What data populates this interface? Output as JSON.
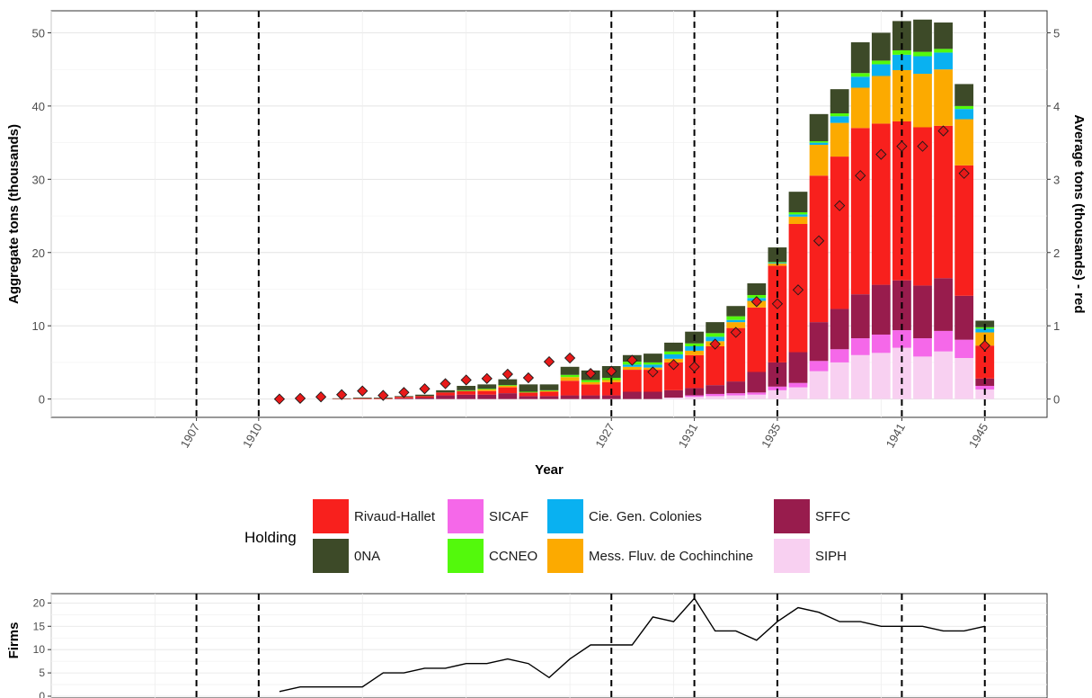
{
  "chart_data": [
    {
      "type": "bar",
      "stacked": true,
      "xlabel": "Year",
      "ylabel": "Aggregate tons (thousands)",
      "ylabel_right": "Average tons (thousands) - red",
      "xlim": [
        1900,
        1948
      ],
      "ylim": [
        -2.5,
        53
      ],
      "ylim_right": [
        -0.25,
        5.3
      ],
      "yticks": [
        "0",
        "10",
        "20",
        "30",
        "40",
        "50"
      ],
      "yticks_right": [
        "0",
        "1",
        "2",
        "3",
        "4",
        "5"
      ],
      "vlines": [
        1907,
        1910,
        1927,
        1931,
        1935,
        1941,
        1945
      ],
      "xtick_labels": [
        "1907",
        "1910",
        "1927",
        "1931",
        "1935",
        "1941",
        "1945"
      ],
      "grid": true,
      "legend": {
        "title": "Holding",
        "placement": "bottom",
        "entries": [
          {
            "label": "Rivaud-Hallet",
            "color": "#f8201d"
          },
          {
            "label": "SICAF",
            "color": "#f568e9"
          },
          {
            "label": "Cie. Gen. Colonies",
            "color": "#09b1f1"
          },
          {
            "label": "SFFC",
            "color": "#981c4d"
          },
          {
            "label": "0NA",
            "color": "#3d4a28"
          },
          {
            "label": "CCNEO",
            "color": "#53f90c"
          },
          {
            "label": "Mess. Fluv. de Cochinchine",
            "color": "#fcaa00"
          },
          {
            "label": "SIPH",
            "color": "#f8d0f1"
          }
        ]
      },
      "stack_order": [
        "SIPH",
        "SICAF",
        "SFFC",
        "Rivaud-Hallet",
        "Mess. Fluv. de Cochinchine",
        "Cie. Gen. Colonies",
        "CCNEO",
        "0NA"
      ],
      "bars": [
        {
          "year": 1911,
          "values": {
            "SIPH": 0,
            "SICAF": 0,
            "SFFC": 0,
            "Rivaud-Hallet": 0,
            "Mess. Fluv. de Cochinchine": 0,
            "Cie. Gen. Colonies": 0,
            "CCNEO": 0,
            "0NA": 0
          }
        },
        {
          "year": 1912,
          "values": {
            "SIPH": 0,
            "SICAF": 0,
            "SFFC": 0,
            "Rivaud-Hallet": 0,
            "Mess. Fluv. de Cochinchine": 0,
            "Cie. Gen. Colonies": 0,
            "CCNEO": 0,
            "0NA": 0
          }
        },
        {
          "year": 1913,
          "values": {
            "SIPH": 0,
            "SICAF": 0,
            "SFFC": 0,
            "Rivaud-Hallet": 0,
            "Mess. Fluv. de Cochinchine": 0,
            "Cie. Gen. Colonies": 0,
            "CCNEO": 0,
            "0NA": 0
          }
        },
        {
          "year": 1914,
          "values": {
            "SIPH": 0,
            "SICAF": 0,
            "SFFC": 0,
            "Rivaud-Hallet": 0.05,
            "Mess. Fluv. de Cochinchine": 0,
            "Cie. Gen. Colonies": 0,
            "CCNEO": 0,
            "0NA": 0.05
          }
        },
        {
          "year": 1915,
          "values": {
            "SIPH": 0,
            "SICAF": 0,
            "SFFC": 0,
            "Rivaud-Hallet": 0.1,
            "Mess. Fluv. de Cochinchine": 0,
            "Cie. Gen. Colonies": 0,
            "CCNEO": 0,
            "0NA": 0.1
          }
        },
        {
          "year": 1916,
          "values": {
            "SIPH": 0,
            "SICAF": 0,
            "SFFC": 0,
            "Rivaud-Hallet": 0.1,
            "Mess. Fluv. de Cochinchine": 0,
            "Cie. Gen. Colonies": 0,
            "CCNEO": 0,
            "0NA": 0.1
          }
        },
        {
          "year": 1917,
          "values": {
            "SIPH": 0,
            "SICAF": 0,
            "SFFC": 0.1,
            "Rivaud-Hallet": 0.2,
            "Mess. Fluv. de Cochinchine": 0,
            "Cie. Gen. Colonies": 0,
            "CCNEO": 0,
            "0NA": 0.1
          }
        },
        {
          "year": 1918,
          "values": {
            "SIPH": 0,
            "SICAF": 0,
            "SFFC": 0.2,
            "Rivaud-Hallet": 0.2,
            "Mess. Fluv. de Cochinchine": 0,
            "Cie. Gen. Colonies": 0,
            "CCNEO": 0,
            "0NA": 0.2
          }
        },
        {
          "year": 1919,
          "values": {
            "SIPH": 0,
            "SICAF": 0,
            "SFFC": 0.5,
            "Rivaud-Hallet": 0.4,
            "Mess. Fluv. de Cochinchine": 0,
            "Cie. Gen. Colonies": 0,
            "CCNEO": 0,
            "0NA": 0.3
          }
        },
        {
          "year": 1920,
          "values": {
            "SIPH": 0,
            "SICAF": 0,
            "SFFC": 0.6,
            "Rivaud-Hallet": 0.5,
            "Mess. Fluv. de Cochinchine": 0,
            "Cie. Gen. Colonies": 0,
            "CCNEO": 0.1,
            "0NA": 0.6
          }
        },
        {
          "year": 1921,
          "values": {
            "SIPH": 0,
            "SICAF": 0,
            "SFFC": 0.6,
            "Rivaud-Hallet": 0.5,
            "Mess. Fluv. de Cochinchine": 0.2,
            "Cie. Gen. Colonies": 0,
            "CCNEO": 0.1,
            "0NA": 0.6
          }
        },
        {
          "year": 1922,
          "values": {
            "SIPH": 0,
            "SICAF": 0,
            "SFFC": 0.8,
            "Rivaud-Hallet": 0.8,
            "Mess. Fluv. de Cochinchine": 0.2,
            "Cie. Gen. Colonies": 0,
            "CCNEO": 0.1,
            "0NA": 0.8
          }
        },
        {
          "year": 1923,
          "values": {
            "SIPH": 0,
            "SICAF": 0,
            "SFFC": 0.4,
            "Rivaud-Hallet": 0.5,
            "Mess. Fluv. de Cochinchine": 0,
            "Cie. Gen. Colonies": 0,
            "CCNEO": 0.1,
            "0NA": 1.0
          }
        },
        {
          "year": 1924,
          "values": {
            "SIPH": 0,
            "SICAF": 0,
            "SFFC": 0.4,
            "Rivaud-Hallet": 0.6,
            "Mess. Fluv. de Cochinchine": 0.1,
            "Cie. Gen. Colonies": 0,
            "CCNEO": 0.1,
            "0NA": 0.8
          }
        },
        {
          "year": 1925,
          "values": {
            "SIPH": 0,
            "SICAF": 0,
            "SFFC": 0.5,
            "Rivaud-Hallet": 2.0,
            "Mess. Fluv. de Cochinchine": 0.5,
            "Cie. Gen. Colonies": 0,
            "CCNEO": 0.3,
            "0NA": 1.1
          }
        },
        {
          "year": 1926,
          "values": {
            "SIPH": 0,
            "SICAF": 0,
            "SFFC": 0.5,
            "Rivaud-Hallet": 1.5,
            "Mess. Fluv. de Cochinchine": 0.3,
            "Cie. Gen. Colonies": 0,
            "CCNEO": 0.3,
            "0NA": 1.3
          }
        },
        {
          "year": 1927,
          "values": {
            "SIPH": 0,
            "SICAF": 0,
            "SFFC": 0.5,
            "Rivaud-Hallet": 1.8,
            "Mess. Fluv. de Cochinchine": 0.3,
            "Cie. Gen. Colonies": 0,
            "CCNEO": 0.3,
            "0NA": 1.6
          }
        },
        {
          "year": 1928,
          "values": {
            "SIPH": 0,
            "SICAF": 0,
            "SFFC": 1.0,
            "Rivaud-Hallet": 3.0,
            "Mess. Fluv. de Cochinchine": 0.4,
            "Cie. Gen. Colonies": 0.3,
            "CCNEO": 0.4,
            "0NA": 0.9
          }
        },
        {
          "year": 1929,
          "values": {
            "SIPH": 0,
            "SICAF": 0,
            "SFFC": 1.0,
            "Rivaud-Hallet": 3.0,
            "Mess. Fluv. de Cochinchine": 0.3,
            "Cie. Gen. Colonies": 0.4,
            "CCNEO": 0.3,
            "0NA": 1.2
          }
        },
        {
          "year": 1930,
          "values": {
            "SIPH": 0.2,
            "SICAF": 0,
            "SFFC": 1.0,
            "Rivaud-Hallet": 3.8,
            "Mess. Fluv. de Cochinchine": 0.5,
            "Cie. Gen. Colonies": 0.6,
            "CCNEO": 0.4,
            "0NA": 1.2
          }
        },
        {
          "year": 1931,
          "values": {
            "SIPH": 0.3,
            "SICAF": 0.2,
            "SFFC": 1.0,
            "Rivaud-Hallet": 4.5,
            "Mess. Fluv. de Cochinchine": 0.6,
            "Cie. Gen. Colonies": 0.6,
            "CCNEO": 0.4,
            "0NA": 1.6
          }
        },
        {
          "year": 1932,
          "values": {
            "SIPH": 0.4,
            "SICAF": 0.3,
            "SFFC": 1.2,
            "Rivaud-Hallet": 5.3,
            "Mess. Fluv. de Cochinchine": 0.7,
            "Cie. Gen. Colonies": 0.6,
            "CCNEO": 0.5,
            "0NA": 1.5
          }
        },
        {
          "year": 1933,
          "values": {
            "SIPH": 0.5,
            "SICAF": 0.3,
            "SFFC": 1.6,
            "Rivaud-Hallet": 7.3,
            "Mess. Fluv. de Cochinchine": 0.8,
            "Cie. Gen. Colonies": 0.3,
            "CCNEO": 0.5,
            "0NA": 1.4
          }
        },
        {
          "year": 1934,
          "values": {
            "SIPH": 0.6,
            "SICAF": 0.3,
            "SFFC": 2.8,
            "Rivaud-Hallet": 8.8,
            "Mess. Fluv. de Cochinchine": 0.9,
            "Cie. Gen. Colonies": 0.4,
            "CCNEO": 0.4,
            "0NA": 1.6
          }
        },
        {
          "year": 1935,
          "values": {
            "SIPH": 1.2,
            "SICAF": 0.5,
            "SFFC": 3.3,
            "Rivaud-Hallet": 13.2,
            "Mess. Fluv. de Cochinchine": 0.3,
            "Cie. Gen. Colonies": 0.1,
            "CCNEO": 0.1,
            "0NA": 2.0
          }
        },
        {
          "year": 1936,
          "values": {
            "SIPH": 1.6,
            "SICAF": 0.6,
            "SFFC": 4.2,
            "Rivaud-Hallet": 17.5,
            "Mess. Fluv. de Cochinchine": 1.0,
            "Cie. Gen. Colonies": 0.3,
            "CCNEO": 0.3,
            "0NA": 2.8
          }
        },
        {
          "year": 1937,
          "values": {
            "SIPH": 3.8,
            "SICAF": 1.4,
            "SFFC": 5.3,
            "Rivaud-Hallet": 20.0,
            "Mess. Fluv. de Cochinchine": 4.2,
            "Cie. Gen. Colonies": 0.3,
            "CCNEO": 0.2,
            "0NA": 3.7
          }
        },
        {
          "year": 1938,
          "values": {
            "SIPH": 5.0,
            "SICAF": 1.8,
            "SFFC": 5.5,
            "Rivaud-Hallet": 20.8,
            "Mess. Fluv. de Cochinchine": 4.6,
            "Cie. Gen. Colonies": 0.9,
            "CCNEO": 0.4,
            "0NA": 3.3
          }
        },
        {
          "year": 1939,
          "values": {
            "SIPH": 6.0,
            "SICAF": 2.3,
            "SFFC": 6.0,
            "Rivaud-Hallet": 22.7,
            "Mess. Fluv. de Cochinchine": 5.5,
            "Cie. Gen. Colonies": 1.5,
            "CCNEO": 0.5,
            "0NA": 4.2
          }
        },
        {
          "year": 1940,
          "values": {
            "SIPH": 6.3,
            "SICAF": 2.5,
            "SFFC": 6.8,
            "Rivaud-Hallet": 22.0,
            "Mess. Fluv. de Cochinchine": 6.5,
            "Cie. Gen. Colonies": 1.6,
            "CCNEO": 0.5,
            "0NA": 3.8
          }
        },
        {
          "year": 1941,
          "values": {
            "SIPH": 7.0,
            "SICAF": 2.4,
            "SFFC": 6.8,
            "Rivaud-Hallet": 21.7,
            "Mess. Fluv. de Cochinchine": 7.0,
            "Cie. Gen. Colonies": 2.1,
            "CCNEO": 0.6,
            "0NA": 4.0
          }
        },
        {
          "year": 1942,
          "values": {
            "SIPH": 5.8,
            "SICAF": 2.5,
            "SFFC": 7.2,
            "Rivaud-Hallet": 21.6,
            "Mess. Fluv. de Cochinchine": 7.3,
            "Cie. Gen. Colonies": 2.4,
            "CCNEO": 0.6,
            "0NA": 4.4
          }
        },
        {
          "year": 1943,
          "values": {
            "SIPH": 6.5,
            "SICAF": 2.8,
            "SFFC": 7.2,
            "Rivaud-Hallet": 20.8,
            "Mess. Fluv. de Cochinchine": 7.7,
            "Cie. Gen. Colonies": 2.3,
            "CCNEO": 0.5,
            "0NA": 3.6
          }
        },
        {
          "year": 1944,
          "values": {
            "SIPH": 5.6,
            "SICAF": 2.5,
            "SFFC": 6.0,
            "Rivaud-Hallet": 17.8,
            "Mess. Fluv. de Cochinchine": 6.3,
            "Cie. Gen. Colonies": 1.4,
            "CCNEO": 0.4,
            "0NA": 3.0
          }
        },
        {
          "year": 1945,
          "values": {
            "SIPH": 1.3,
            "SICAF": 0.5,
            "SFFC": 1.0,
            "Rivaud-Hallet": 4.5,
            "Mess. Fluv. de Cochinchine": 1.8,
            "Cie. Gen. Colonies": 0.5,
            "CCNEO": 0.2,
            "0NA": 0.9
          }
        }
      ],
      "average_points": {
        "axis": "right",
        "color": "#e81919",
        "marker": "diamond",
        "x": [
          1911,
          1912,
          1913,
          1914,
          1915,
          1916,
          1917,
          1918,
          1919,
          1920,
          1921,
          1922,
          1923,
          1924,
          1925,
          1926,
          1927,
          1928,
          1929,
          1930,
          1931,
          1932,
          1933,
          1934,
          1935,
          1936,
          1937,
          1938,
          1939,
          1940,
          1941,
          1942,
          1943,
          1944,
          1945
        ],
        "y": [
          0.0,
          0.01,
          0.03,
          0.06,
          0.11,
          0.05,
          0.09,
          0.14,
          0.21,
          0.26,
          0.28,
          0.34,
          0.29,
          0.51,
          0.56,
          0.35,
          0.38,
          0.53,
          0.37,
          0.47,
          0.44,
          0.75,
          0.91,
          1.33,
          1.3,
          1.49,
          2.16,
          2.64,
          3.05,
          3.34,
          3.45,
          3.45,
          3.66,
          3.08,
          0.73
        ]
      }
    },
    {
      "type": "line",
      "ylabel": "Firms",
      "xlim": [
        1900,
        1948
      ],
      "ylim": [
        0,
        22
      ],
      "yticks": [
        "0",
        "5",
        "10",
        "15",
        "20"
      ],
      "vlines": [
        1907,
        1910,
        1927,
        1931,
        1935,
        1941,
        1945
      ],
      "grid": true,
      "x": [
        1911,
        1912,
        1913,
        1914,
        1915,
        1916,
        1917,
        1918,
        1919,
        1920,
        1921,
        1922,
        1923,
        1924,
        1925,
        1926,
        1927,
        1928,
        1929,
        1930,
        1931,
        1932,
        1933,
        1934,
        1935,
        1936,
        1937,
        1938,
        1939,
        1940,
        1941,
        1942,
        1943,
        1944,
        1945
      ],
      "y": [
        1,
        2,
        2,
        2,
        2,
        5,
        5,
        6,
        6,
        7,
        7,
        8,
        7,
        4,
        8,
        11,
        11,
        11,
        17,
        16,
        21,
        14,
        14,
        12,
        16,
        19,
        18,
        16,
        16,
        15,
        15,
        15,
        14,
        14,
        15
      ]
    }
  ]
}
